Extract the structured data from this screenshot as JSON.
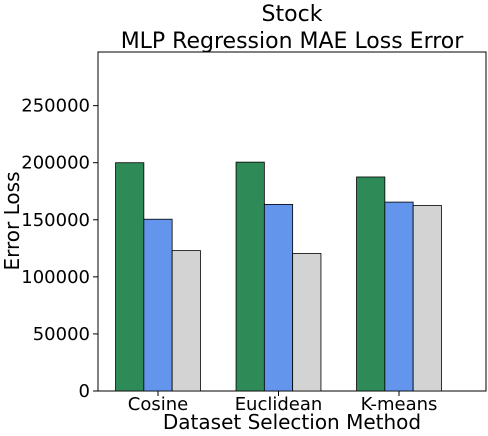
{
  "chart_data": {
    "type": "bar",
    "title": "Stock",
    "subtitle": "MLP Regression MAE Loss Error",
    "xlabel": "Dataset Selection Method",
    "ylabel": "Error Loss",
    "categories": [
      "Cosine",
      "Euclidean",
      "K-means"
    ],
    "series": [
      {
        "values": [
          200000,
          200500,
          187500
        ],
        "color": "#2e8b57"
      },
      {
        "values": [
          150500,
          163500,
          165500
        ],
        "color": "#6495ed"
      },
      {
        "values": [
          123000,
          120500,
          162500
        ],
        "color": "#d3d3d3"
      }
    ],
    "ylim": [
      0,
      297000
    ],
    "yticks": [
      0,
      50000,
      100000,
      150000,
      200000,
      250000
    ],
    "ytick_labels": [
      "0",
      "50000",
      "100000",
      "150000",
      "200000",
      "250000"
    ],
    "grid": false,
    "legend": "none"
  }
}
